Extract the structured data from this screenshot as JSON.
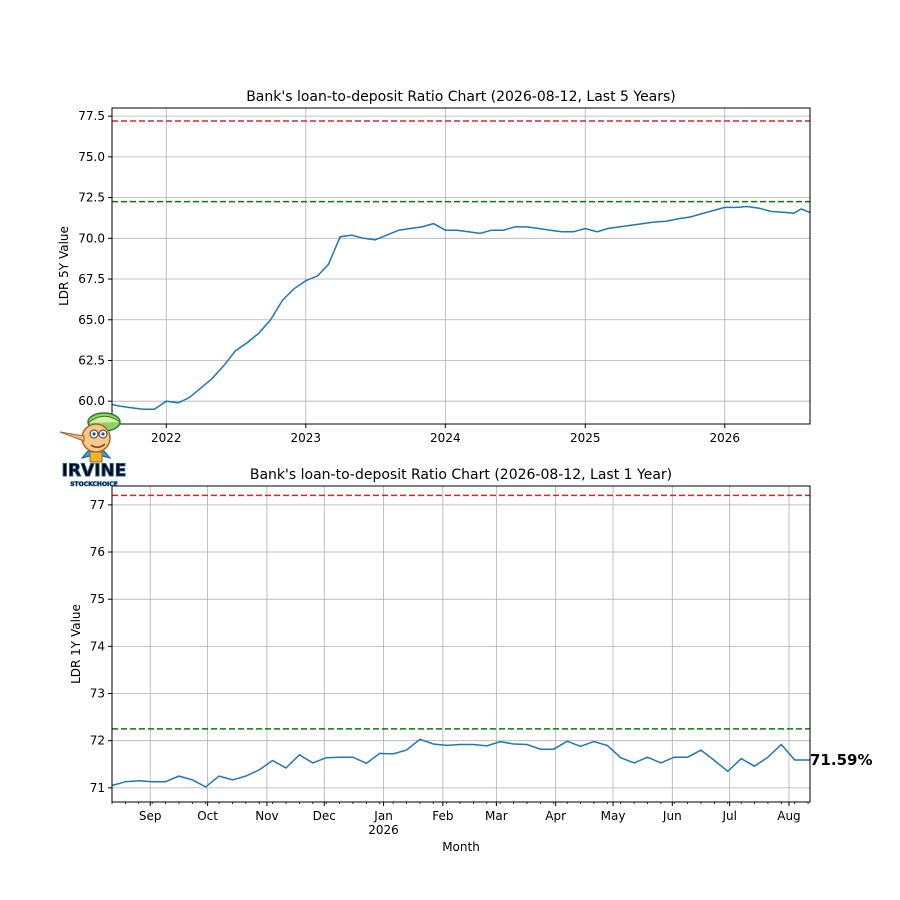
{
  "chart_data": [
    {
      "type": "line",
      "title": "Bank's loan-to-deposit Ratio Chart (2026-08-12, Last 5 Years)",
      "ylabel": "LDR 5Y Value",
      "xlabel": "",
      "xlim": [
        "2021-08-12",
        "2026-08-12"
      ],
      "ylim": [
        58.6,
        78.0
      ],
      "x_ticks": [
        "2022",
        "2023",
        "2024",
        "2025",
        "2026"
      ],
      "y_ticks": [
        "60.0",
        "62.5",
        "65.0",
        "67.5",
        "70.0",
        "72.5",
        "75.0",
        "77.5"
      ],
      "grid": true,
      "reference_lines": [
        {
          "value": 77.2,
          "color": "#d62728",
          "style": "dashed"
        },
        {
          "value": 72.25,
          "color": "#008000",
          "style": "dashed"
        }
      ],
      "series": [
        {
          "color": "#1f77b4",
          "points": [
            [
              "2021-08-12",
              59.8
            ],
            [
              "2021-09-01",
              59.7
            ],
            [
              "2021-10-01",
              59.6
            ],
            [
              "2021-11-01",
              59.5
            ],
            [
              "2021-12-01",
              59.5
            ],
            [
              "2022-01-01",
              60.0
            ],
            [
              "2022-02-01",
              59.9
            ],
            [
              "2022-03-01",
              60.2
            ],
            [
              "2022-04-01",
              60.8
            ],
            [
              "2022-05-01",
              61.4
            ],
            [
              "2022-06-01",
              62.2
            ],
            [
              "2022-07-01",
              63.1
            ],
            [
              "2022-08-01",
              63.6
            ],
            [
              "2022-09-01",
              64.2
            ],
            [
              "2022-10-01",
              65.0
            ],
            [
              "2022-11-01",
              66.2
            ],
            [
              "2022-12-01",
              66.9
            ],
            [
              "2023-01-01",
              67.4
            ],
            [
              "2023-02-01",
              67.7
            ],
            [
              "2023-03-01",
              68.4
            ],
            [
              "2023-04-01",
              70.1
            ],
            [
              "2023-05-01",
              70.2
            ],
            [
              "2023-06-01",
              70.0
            ],
            [
              "2023-07-01",
              69.9
            ],
            [
              "2023-08-01",
              70.2
            ],
            [
              "2023-09-01",
              70.5
            ],
            [
              "2023-10-01",
              70.6
            ],
            [
              "2023-11-01",
              70.7
            ],
            [
              "2023-12-01",
              70.9
            ],
            [
              "2024-01-01",
              70.5
            ],
            [
              "2024-02-01",
              70.5
            ],
            [
              "2024-03-01",
              70.4
            ],
            [
              "2024-04-01",
              70.3
            ],
            [
              "2024-05-01",
              70.5
            ],
            [
              "2024-06-01",
              70.5
            ],
            [
              "2024-07-01",
              70.7
            ],
            [
              "2024-08-01",
              70.7
            ],
            [
              "2024-09-01",
              70.6
            ],
            [
              "2024-10-01",
              70.5
            ],
            [
              "2024-11-01",
              70.4
            ],
            [
              "2024-12-01",
              70.4
            ],
            [
              "2025-01-01",
              70.6
            ],
            [
              "2025-02-01",
              70.4
            ],
            [
              "2025-03-01",
              70.6
            ],
            [
              "2025-04-01",
              70.7
            ],
            [
              "2025-05-01",
              70.8
            ],
            [
              "2025-06-01",
              70.9
            ],
            [
              "2025-07-01",
              71.0
            ],
            [
              "2025-08-01",
              71.05
            ],
            [
              "2025-09-01",
              71.2
            ],
            [
              "2025-10-01",
              71.3
            ],
            [
              "2025-11-01",
              71.5
            ],
            [
              "2025-12-01",
              71.7
            ],
            [
              "2026-01-01",
              71.9
            ],
            [
              "2026-02-01",
              71.9
            ],
            [
              "2026-03-01",
              71.95
            ],
            [
              "2026-04-01",
              71.85
            ],
            [
              "2026-05-01",
              71.65
            ],
            [
              "2026-06-01",
              71.6
            ],
            [
              "2026-07-01",
              71.55
            ],
            [
              "2026-07-20",
              71.8
            ],
            [
              "2026-08-12",
              71.59
            ]
          ]
        }
      ]
    },
    {
      "type": "line",
      "title": "Bank's loan-to-deposit Ratio Chart (2026-08-12, Last 1 Year)",
      "ylabel": "LDR 1Y Value",
      "xlabel": "Month",
      "xlim": [
        "2025-08-12",
        "2026-08-12"
      ],
      "ylim": [
        70.7,
        77.4
      ],
      "x_ticks": [
        "Sep",
        "Oct",
        "Nov",
        "Dec",
        "Jan",
        "Feb",
        "Mar",
        "Apr",
        "May",
        "Jun",
        "Jul",
        "Aug"
      ],
      "x_year_label": "2026",
      "y_ticks": [
        "71",
        "72",
        "73",
        "74",
        "75",
        "76",
        "77"
      ],
      "grid": true,
      "last_value_label": "71.59%",
      "reference_lines": [
        {
          "value": 77.2,
          "color": "#d62728",
          "style": "dashed"
        },
        {
          "value": 72.25,
          "color": "#008000",
          "style": "dashed"
        }
      ],
      "series": [
        {
          "color": "#1f77b4",
          "points": [
            [
              "2025-08-12",
              71.05
            ],
            [
              "2025-08-19",
              71.13
            ],
            [
              "2025-08-26",
              71.15
            ],
            [
              "2025-09-02",
              71.13
            ],
            [
              "2025-09-09",
              71.13
            ],
            [
              "2025-09-16",
              71.25
            ],
            [
              "2025-09-23",
              71.17
            ],
            [
              "2025-09-30",
              71.02
            ],
            [
              "2025-10-07",
              71.25
            ],
            [
              "2025-10-14",
              71.17
            ],
            [
              "2025-10-21",
              71.25
            ],
            [
              "2025-10-28",
              71.38
            ],
            [
              "2025-11-04",
              71.58
            ],
            [
              "2025-11-11",
              71.42
            ],
            [
              "2025-11-18",
              71.7
            ],
            [
              "2025-11-25",
              71.53
            ],
            [
              "2025-12-02",
              71.64
            ],
            [
              "2025-12-09",
              71.65
            ],
            [
              "2025-12-16",
              71.65
            ],
            [
              "2025-12-23",
              71.52
            ],
            [
              "2025-12-30",
              71.73
            ],
            [
              "2026-01-06",
              71.72
            ],
            [
              "2026-01-13",
              71.8
            ],
            [
              "2026-01-20",
              72.03
            ],
            [
              "2026-01-27",
              71.93
            ],
            [
              "2026-02-03",
              71.9
            ],
            [
              "2026-02-10",
              71.92
            ],
            [
              "2026-02-17",
              71.92
            ],
            [
              "2026-02-24",
              71.89
            ],
            [
              "2026-03-03",
              71.98
            ],
            [
              "2026-03-10",
              71.93
            ],
            [
              "2026-03-17",
              71.92
            ],
            [
              "2026-03-24",
              71.82
            ],
            [
              "2026-03-31",
              71.82
            ],
            [
              "2026-04-07",
              71.99
            ],
            [
              "2026-04-14",
              71.88
            ],
            [
              "2026-04-21",
              71.98
            ],
            [
              "2026-04-28",
              71.9
            ],
            [
              "2026-05-05",
              71.64
            ],
            [
              "2026-05-12",
              71.53
            ],
            [
              "2026-05-19",
              71.65
            ],
            [
              "2026-05-26",
              71.53
            ],
            [
              "2026-06-02",
              71.65
            ],
            [
              "2026-06-09",
              71.65
            ],
            [
              "2026-06-16",
              71.8
            ],
            [
              "2026-06-23",
              71.58
            ],
            [
              "2026-06-30",
              71.35
            ],
            [
              "2026-07-07",
              71.62
            ],
            [
              "2026-07-14",
              71.46
            ],
            [
              "2026-07-21",
              71.65
            ],
            [
              "2026-07-28",
              71.92
            ],
            [
              "2026-08-04",
              71.59
            ],
            [
              "2026-08-12",
              71.59
            ]
          ]
        }
      ]
    }
  ],
  "logo": {
    "text": "IRVINE",
    "subtext": "STOCKCHOICE"
  }
}
